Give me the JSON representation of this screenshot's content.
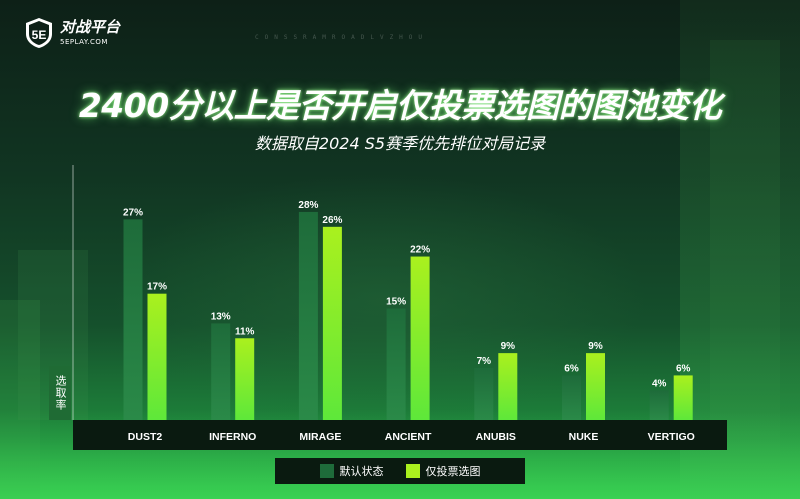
{
  "logo": {
    "badge": "5E",
    "name": "对战平台",
    "url": "5EPLAY.COM"
  },
  "watermark": "CONSSRAMROADLVZHOU",
  "title": "2400分以上是否开启仅投票选图的图池变化",
  "subtitle": "数据取自2024 S5赛季优先排位对局记录",
  "colors": {
    "series1": "#1e6b3a",
    "series2": "#aaf01e",
    "axis": "#0a1a10",
    "label": "#ffffff"
  },
  "chart_data": {
    "type": "bar",
    "title": "2400分以上是否开启仅投票选图的图池变化",
    "ylabel": "选取率",
    "xlabel": "",
    "categories": [
      "DUST2",
      "INFERNO",
      "MIRAGE",
      "ANCIENT",
      "ANUBIS",
      "NUKE",
      "VERTIGO"
    ],
    "series": [
      {
        "name": "默认状态",
        "values": [
          27,
          13,
          28,
          15,
          7,
          6,
          4
        ]
      },
      {
        "name": "仅投票选图",
        "values": [
          17,
          11,
          26,
          22,
          9,
          9,
          6
        ]
      }
    ],
    "unit": "%",
    "ylim": [
      0,
      30
    ],
    "legend": "bottom",
    "grid": false
  }
}
